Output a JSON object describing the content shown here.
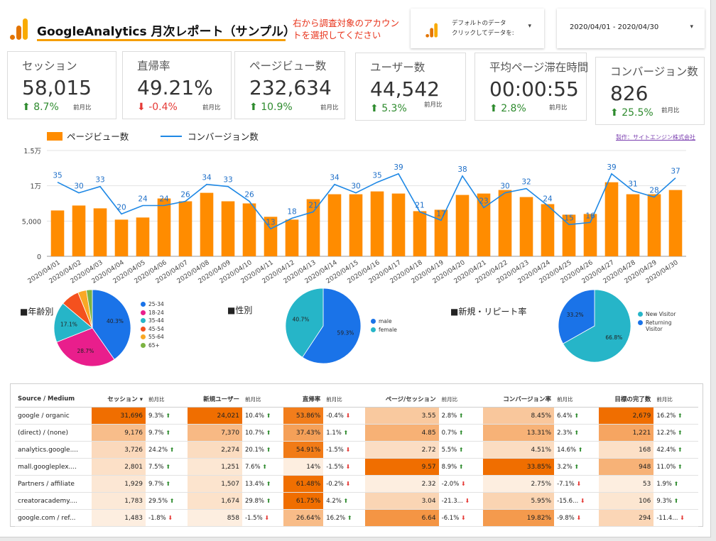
{
  "header": {
    "title": "GoogleAnalytics 月次レポート（サンプル）",
    "hint_line1": "右から調査対象のアカウン",
    "hint_line2": "トを選択してください",
    "account_line1": "デフォルトのデータ",
    "account_line2": "クリックしてデータを:",
    "date_range": "2020/04/01 - 2020/04/30",
    "caret": "▾"
  },
  "kpis": [
    {
      "label": "セッション",
      "value": "58,015",
      "change": "8.7%",
      "dir": "up",
      "compare": "前月比"
    },
    {
      "label": "直帰率",
      "value": "49.21%",
      "change": "-0.4%",
      "dir": "down",
      "compare": "前月比"
    },
    {
      "label": "ページビュー数",
      "value": "232,634",
      "change": "10.9%",
      "dir": "up",
      "compare": "前月比"
    },
    {
      "label": "ユーザー数",
      "value": "44,542",
      "change": "5.3%",
      "dir": "up",
      "compare": "前月比"
    },
    {
      "label": "平均ページ滞在時間",
      "value": "00:00:55",
      "change": "2.8%",
      "dir": "up",
      "compare": "前月比"
    },
    {
      "label": "コンバージョン数",
      "value": "826",
      "change": "25.5%",
      "dir": "up",
      "compare": "前月比"
    }
  ],
  "credit": "製作：サイトエンジン株式会社",
  "chart_data": {
    "type": "bar",
    "legend": [
      "ページビュー数",
      "コンバージョン数"
    ],
    "ytick_labels": [
      "0",
      "5,000",
      "1万",
      "1.5万"
    ],
    "ylim": [
      0,
      15000
    ],
    "categories": [
      "2020/04/01",
      "2020/04/02",
      "2020/04/03",
      "2020/04/04",
      "2020/04/05",
      "2020/04/06",
      "2020/04/07",
      "2020/04/08",
      "2020/04/09",
      "2020/04/10",
      "2020/04/11",
      "2020/04/12",
      "2020/04/13",
      "2020/04/14",
      "2020/04/15",
      "2020/04/16",
      "2020/04/17",
      "2020/04/18",
      "2020/04/19",
      "2020/04/20",
      "2020/04/21",
      "2020/04/22",
      "2020/04/23",
      "2020/04/24",
      "2020/04/25",
      "2020/04/26",
      "2020/04/27",
      "2020/04/28",
      "2020/04/29",
      "2020/04/30"
    ],
    "series": [
      {
        "name": "ページビュー数",
        "color": "#ff8c00",
        "values": [
          6500,
          7200,
          6800,
          5200,
          5500,
          8200,
          7800,
          9000,
          7800,
          7500,
          5600,
          5200,
          8100,
          8800,
          8800,
          9200,
          8900,
          6400,
          6600,
          8700,
          8900,
          9400,
          8400,
          7400,
          5900,
          6000,
          10500,
          8800,
          8800,
          9400
        ]
      },
      {
        "name": "コンバージョン数",
        "color": "#1e88e5",
        "values": [
          35,
          30,
          33,
          20,
          24,
          24,
          26,
          34,
          33,
          26,
          13,
          18,
          21,
          34,
          30,
          35,
          39,
          21,
          17,
          38,
          23,
          30,
          32,
          24,
          15,
          16,
          39,
          31,
          28,
          37
        ]
      }
    ]
  },
  "pies": [
    {
      "title": "■年齢別",
      "slices": [
        {
          "label": "25-34",
          "value": 40.3,
          "color": "#1a73e8",
          "text": "40.3%"
        },
        {
          "label": "18-24",
          "value": 28.7,
          "color": "#e91e8c",
          "text": "28.7%"
        },
        {
          "label": "35-44",
          "value": 17.1,
          "color": "#26b5c8",
          "text": "17.1%"
        },
        {
          "label": "45-54",
          "value": 7.8,
          "color": "#f4511e",
          "text": ""
        },
        {
          "label": "55-64",
          "value": 3.6,
          "color": "#f9a825",
          "text": ""
        },
        {
          "label": "65+",
          "value": 2.5,
          "color": "#7cb342",
          "text": ""
        }
      ]
    },
    {
      "title": "■性別",
      "slices": [
        {
          "label": "male",
          "value": 59.3,
          "color": "#1a73e8",
          "text": "59.3%"
        },
        {
          "label": "female",
          "value": 40.7,
          "color": "#26b5c8",
          "text": "40.7%"
        }
      ]
    },
    {
      "title": "■新規・リピート率",
      "slices": [
        {
          "label": "New Visitor",
          "value": 66.8,
          "color": "#26b5c8",
          "text": "66.8%"
        },
        {
          "label": "Returning Visitor",
          "value": 33.2,
          "color": "#1a73e8",
          "text": "33.2%"
        }
      ]
    }
  ],
  "table": {
    "headers": [
      "Source / Medium",
      "セッション ▾",
      "前月比",
      "新規ユーザー",
      "前月比",
      "直帰率",
      "前月比",
      "ページ/セッション",
      "前月比",
      "コンバージョン率",
      "前月比",
      "目標の完了数",
      "前月比"
    ],
    "rows": [
      {
        "source": "google / organic",
        "cells": [
          [
            "31,696",
            "9.3%",
            "up"
          ],
          [
            "24,021",
            "10.4%",
            "up"
          ],
          [
            "53.86%",
            "-0.4%",
            "down"
          ],
          [
            "3.55",
            "2.8%",
            "up"
          ],
          [
            "8.45%",
            "6.4%",
            "up"
          ],
          [
            "2,679",
            "16.2%",
            "up"
          ]
        ]
      },
      {
        "source": "(direct) / (none)",
        "cells": [
          [
            "9,176",
            "9.7%",
            "up"
          ],
          [
            "7,370",
            "10.7%",
            "up"
          ],
          [
            "37.43%",
            "1.1%",
            "up"
          ],
          [
            "4.85",
            "0.7%",
            "up"
          ],
          [
            "13.31%",
            "2.3%",
            "up"
          ],
          [
            "1,221",
            "12.2%",
            "up"
          ]
        ]
      },
      {
        "source": "analytics.google....",
        "cells": [
          [
            "3,726",
            "24.2%",
            "up"
          ],
          [
            "2,274",
            "20.1%",
            "up"
          ],
          [
            "54.91%",
            "-1.5%",
            "down"
          ],
          [
            "2.72",
            "5.5%",
            "up"
          ],
          [
            "4.51%",
            "14.6%",
            "up"
          ],
          [
            "168",
            "42.4%",
            "up"
          ]
        ]
      },
      {
        "source": "mall.googleplex....",
        "cells": [
          [
            "2,801",
            "7.5%",
            "up"
          ],
          [
            "1,251",
            "7.6%",
            "up"
          ],
          [
            "14%",
            "-1.5%",
            "down"
          ],
          [
            "9.57",
            "8.9%",
            "up"
          ],
          [
            "33.85%",
            "3.2%",
            "up"
          ],
          [
            "948",
            "11.0%",
            "up"
          ]
        ]
      },
      {
        "source": "Partners / affiliate",
        "cells": [
          [
            "1,929",
            "9.7%",
            "up"
          ],
          [
            "1,507",
            "13.4%",
            "up"
          ],
          [
            "61.48%",
            "-0.2%",
            "down"
          ],
          [
            "2.32",
            "-2.0%",
            "down"
          ],
          [
            "2.75%",
            "-7.1%",
            "down"
          ],
          [
            "53",
            "1.9%",
            "up"
          ]
        ]
      },
      {
        "source": "creatoracademy....",
        "cells": [
          [
            "1,783",
            "29.5%",
            "up"
          ],
          [
            "1,674",
            "29.8%",
            "up"
          ],
          [
            "61.75%",
            "4.2%",
            "up"
          ],
          [
            "3.04",
            "-21.3...",
            "down"
          ],
          [
            "5.95%",
            "-15.6...",
            "down"
          ],
          [
            "106",
            "9.3%",
            "up"
          ]
        ]
      },
      {
        "source": "google.com / ref...",
        "cells": [
          [
            "1,483",
            "-1.8%",
            "down"
          ],
          [
            "858",
            "-1.5%",
            "down"
          ],
          [
            "26.64%",
            "16.2%",
            "up"
          ],
          [
            "6.64",
            "-6.1%",
            "down"
          ],
          [
            "19.82%",
            "-9.8%",
            "down"
          ],
          [
            "294",
            "-11.4...",
            "down"
          ]
        ]
      }
    ]
  }
}
